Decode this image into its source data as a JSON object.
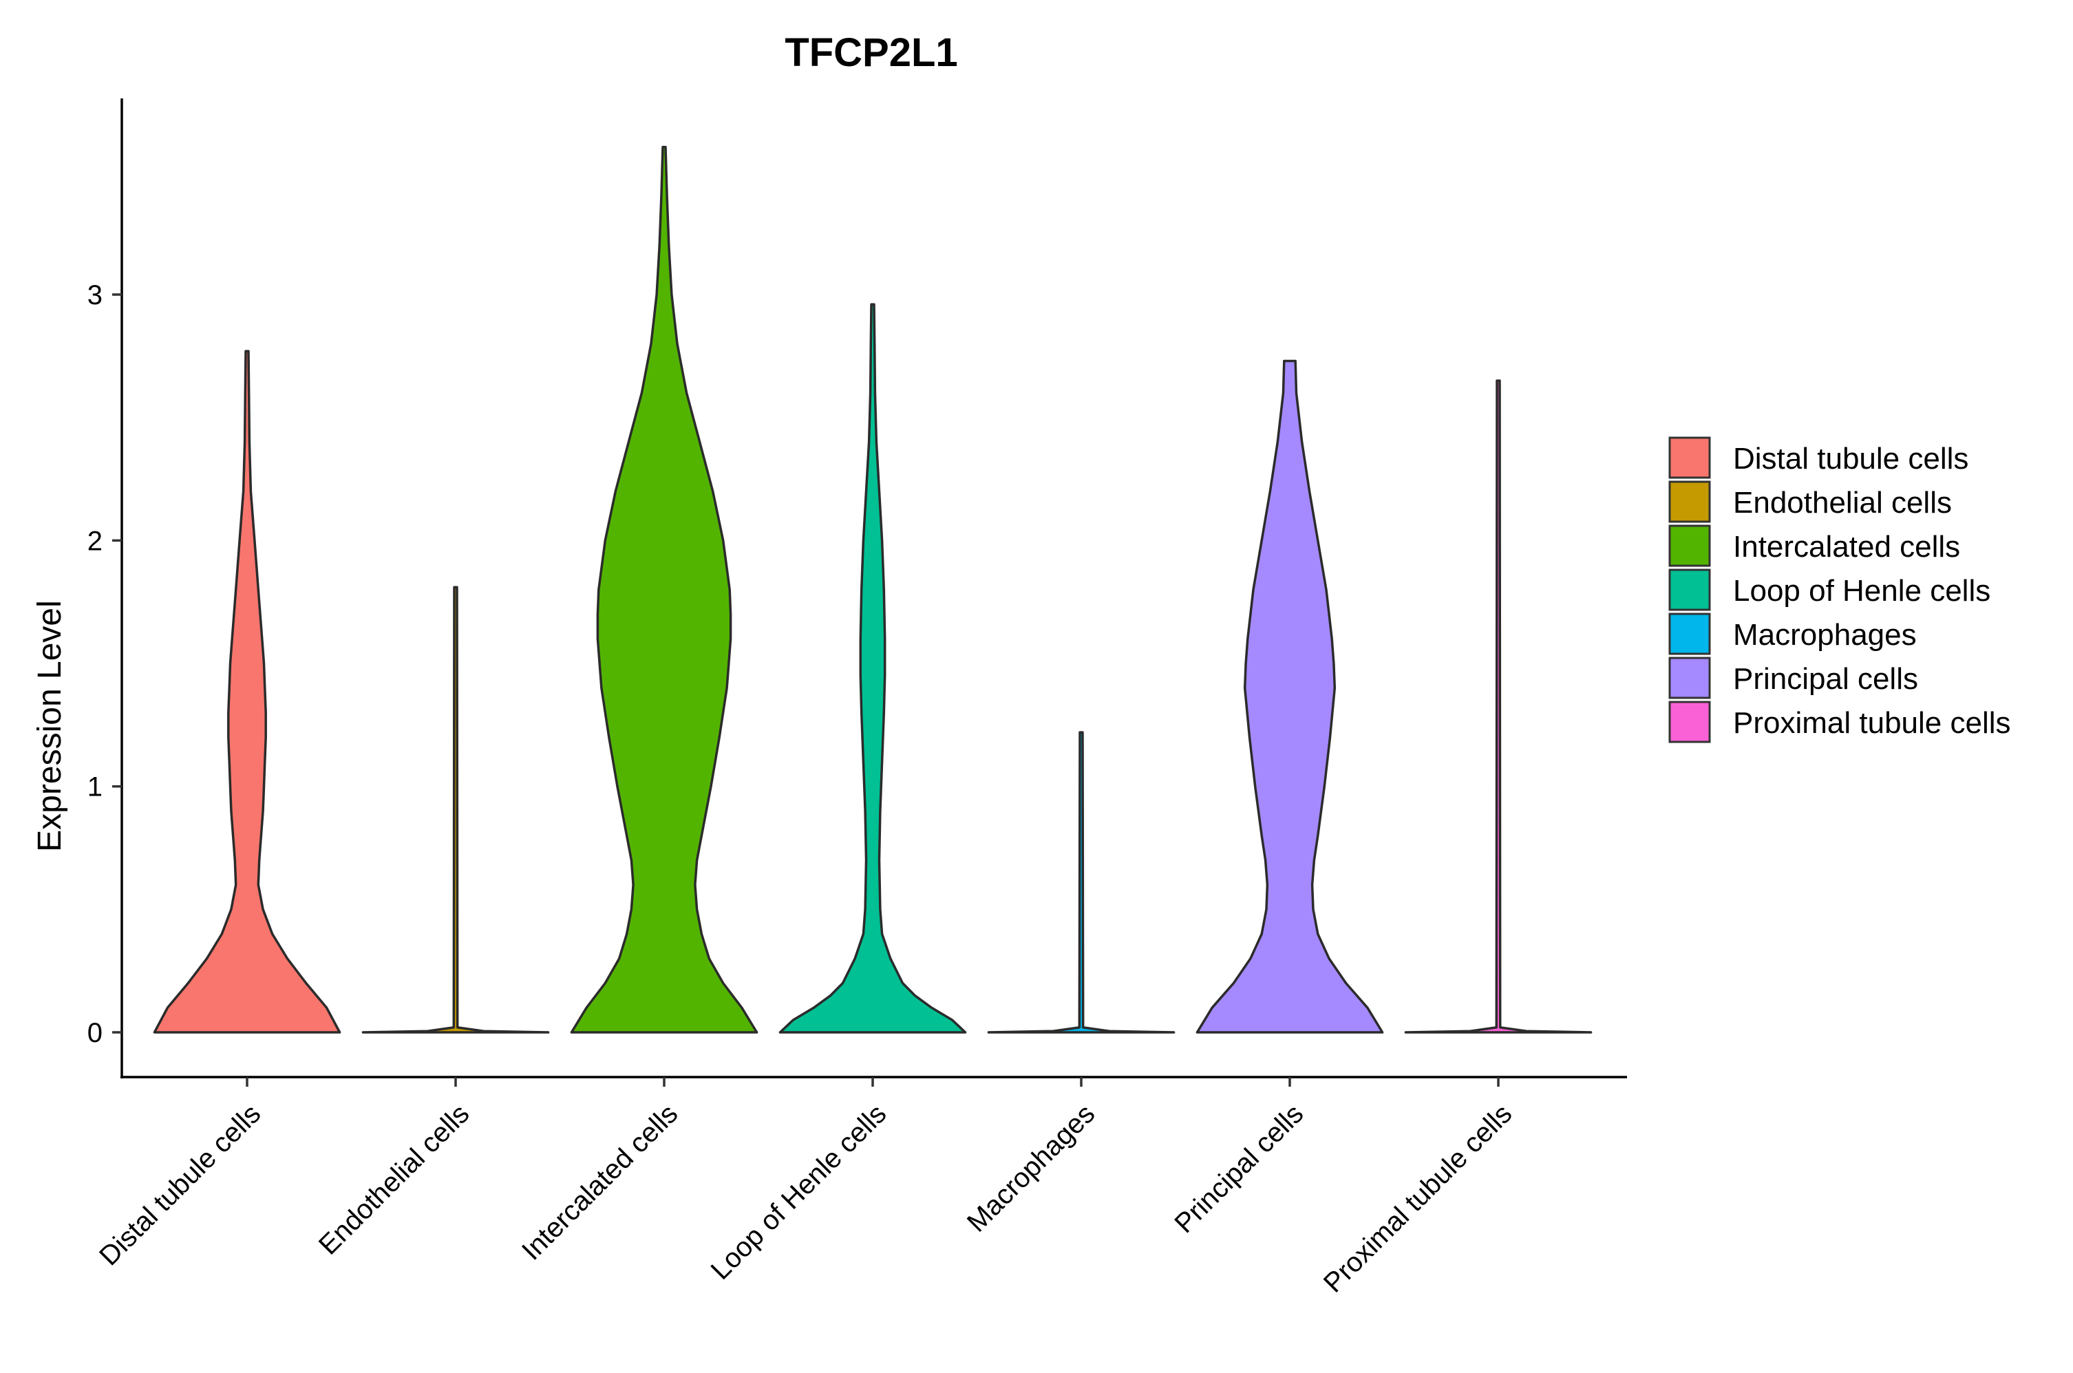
{
  "chart_data": {
    "type": "violin",
    "title": "TFCP2L1",
    "xlabel": "",
    "ylabel": "Expression Level",
    "ylim": [
      -0.18,
      3.8
    ],
    "yticks": [
      0,
      1,
      2,
      3
    ],
    "yticklabels": [
      "0",
      "1",
      "2",
      "3"
    ],
    "grid": false,
    "legend_position": "right",
    "categories": [
      "Distal tubule cells",
      "Endothelial cells",
      "Intercalated cells",
      "Loop of Henle cells",
      "Macrophages",
      "Principal cells",
      "Proximal tubule cells"
    ],
    "colors": [
      "#F8766D",
      "#C49A00",
      "#53B400",
      "#00C094",
      "#00B6EB",
      "#A58AFF",
      "#FB61D7"
    ],
    "series": [
      {
        "name": "Distal tubule cells",
        "max": 2.77,
        "density": [
          [
            0,
            0.99
          ],
          [
            0.1,
            0.85
          ],
          [
            0.2,
            0.63
          ],
          [
            0.3,
            0.43
          ],
          [
            0.4,
            0.27
          ],
          [
            0.5,
            0.17
          ],
          [
            0.6,
            0.12
          ],
          [
            0.7,
            0.13
          ],
          [
            0.8,
            0.15
          ],
          [
            0.9,
            0.17
          ],
          [
            1.0,
            0.18
          ],
          [
            1.1,
            0.19
          ],
          [
            1.2,
            0.2
          ],
          [
            1.3,
            0.2
          ],
          [
            1.4,
            0.19
          ],
          [
            1.5,
            0.18
          ],
          [
            1.6,
            0.16
          ],
          [
            1.8,
            0.12
          ],
          [
            2.0,
            0.08
          ],
          [
            2.2,
            0.04
          ],
          [
            2.4,
            0.025
          ],
          [
            2.6,
            0.02
          ],
          [
            2.77,
            0.015
          ]
        ]
      },
      {
        "name": "Endothelial cells",
        "max": 1.81,
        "density": [
          [
            0,
            0.99
          ],
          [
            0.005,
            0.3
          ],
          [
            0.02,
            0.02
          ],
          [
            1.81,
            0.015
          ]
        ]
      },
      {
        "name": "Intercalated cells",
        "max": 3.6,
        "density": [
          [
            0,
            0.99
          ],
          [
            0.1,
            0.83
          ],
          [
            0.2,
            0.63
          ],
          [
            0.3,
            0.48
          ],
          [
            0.4,
            0.4
          ],
          [
            0.5,
            0.35
          ],
          [
            0.6,
            0.33
          ],
          [
            0.7,
            0.35
          ],
          [
            0.8,
            0.4
          ],
          [
            1.0,
            0.5
          ],
          [
            1.2,
            0.59
          ],
          [
            1.4,
            0.67
          ],
          [
            1.6,
            0.71
          ],
          [
            1.7,
            0.71
          ],
          [
            1.8,
            0.7
          ],
          [
            2.0,
            0.63
          ],
          [
            2.2,
            0.52
          ],
          [
            2.4,
            0.38
          ],
          [
            2.6,
            0.24
          ],
          [
            2.8,
            0.14
          ],
          [
            3.0,
            0.08
          ],
          [
            3.2,
            0.05
          ],
          [
            3.4,
            0.03
          ],
          [
            3.6,
            0.015
          ]
        ]
      },
      {
        "name": "Loop of Henle cells",
        "max": 2.96,
        "density": [
          [
            0,
            0.99
          ],
          [
            0.05,
            0.85
          ],
          [
            0.1,
            0.63
          ],
          [
            0.15,
            0.45
          ],
          [
            0.2,
            0.32
          ],
          [
            0.3,
            0.19
          ],
          [
            0.4,
            0.1
          ],
          [
            0.5,
            0.08
          ],
          [
            0.7,
            0.07
          ],
          [
            0.9,
            0.08
          ],
          [
            1.1,
            0.1
          ],
          [
            1.3,
            0.12
          ],
          [
            1.45,
            0.13
          ],
          [
            1.6,
            0.13
          ],
          [
            1.8,
            0.12
          ],
          [
            2.0,
            0.1
          ],
          [
            2.2,
            0.07
          ],
          [
            2.4,
            0.04
          ],
          [
            2.6,
            0.025
          ],
          [
            2.8,
            0.02
          ],
          [
            2.96,
            0.015
          ]
        ]
      },
      {
        "name": "Macrophages",
        "max": 1.22,
        "density": [
          [
            0,
            0.99
          ],
          [
            0.005,
            0.3
          ],
          [
            0.02,
            0.02
          ],
          [
            1.22,
            0.015
          ]
        ]
      },
      {
        "name": "Principal cells",
        "max": 2.73,
        "density": [
          [
            0,
            0.99
          ],
          [
            0.1,
            0.83
          ],
          [
            0.2,
            0.6
          ],
          [
            0.3,
            0.42
          ],
          [
            0.4,
            0.3
          ],
          [
            0.5,
            0.25
          ],
          [
            0.6,
            0.24
          ],
          [
            0.7,
            0.26
          ],
          [
            0.8,
            0.3
          ],
          [
            1.0,
            0.37
          ],
          [
            1.2,
            0.43
          ],
          [
            1.4,
            0.48
          ],
          [
            1.5,
            0.47
          ],
          [
            1.6,
            0.45
          ],
          [
            1.8,
            0.39
          ],
          [
            2.0,
            0.3
          ],
          [
            2.2,
            0.21
          ],
          [
            2.4,
            0.13
          ],
          [
            2.6,
            0.07
          ],
          [
            2.73,
            0.06
          ]
        ]
      },
      {
        "name": "Proximal tubule cells",
        "max": 2.65,
        "density": [
          [
            0,
            0.99
          ],
          [
            0.005,
            0.3
          ],
          [
            0.02,
            0.02
          ],
          [
            2.65,
            0.015
          ]
        ]
      }
    ]
  }
}
